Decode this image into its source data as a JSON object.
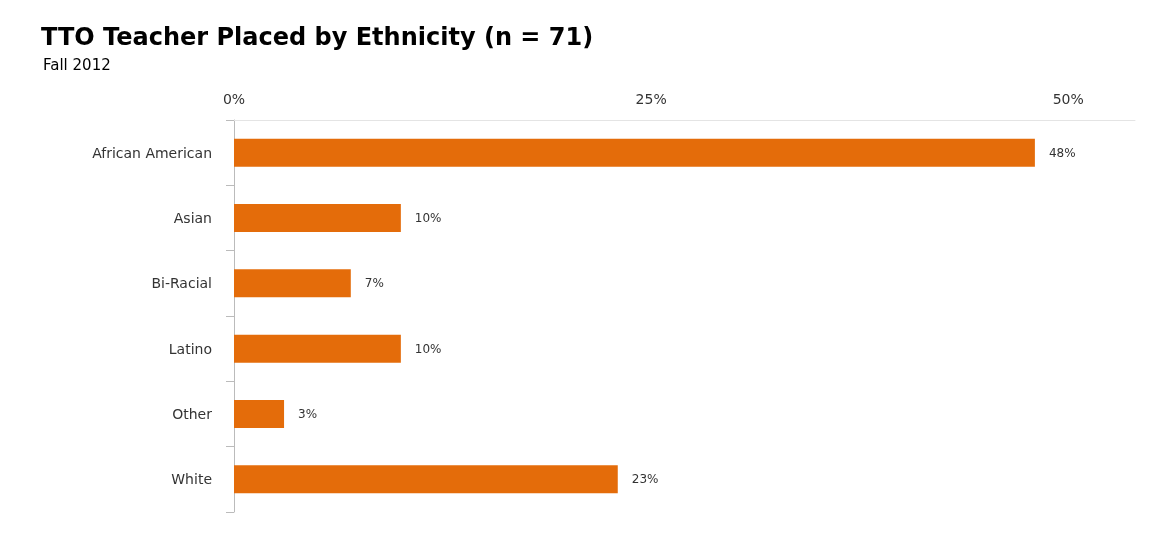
{
  "chart_data": {
    "type": "bar",
    "orientation": "horizontal",
    "title": "TTO Teacher Placed by Ethnicity (n = 71)",
    "subtitle": "Fall 2012",
    "categories": [
      "African American",
      "Asian",
      "Bi-Racial",
      "Latino",
      "Other",
      "White"
    ],
    "values": [
      48,
      10,
      7,
      10,
      3,
      23
    ],
    "color": "#e46c0a",
    "value_labels": [
      "48%",
      "10%",
      "7%",
      "10%",
      "3%",
      "23%"
    ],
    "xlim": [
      0,
      54
    ],
    "xticks": [
      {
        "value": 0,
        "label": "0%"
      },
      {
        "value": 25,
        "label": "25%"
      },
      {
        "value": 50,
        "label": "50%"
      }
    ],
    "grid": false
  }
}
